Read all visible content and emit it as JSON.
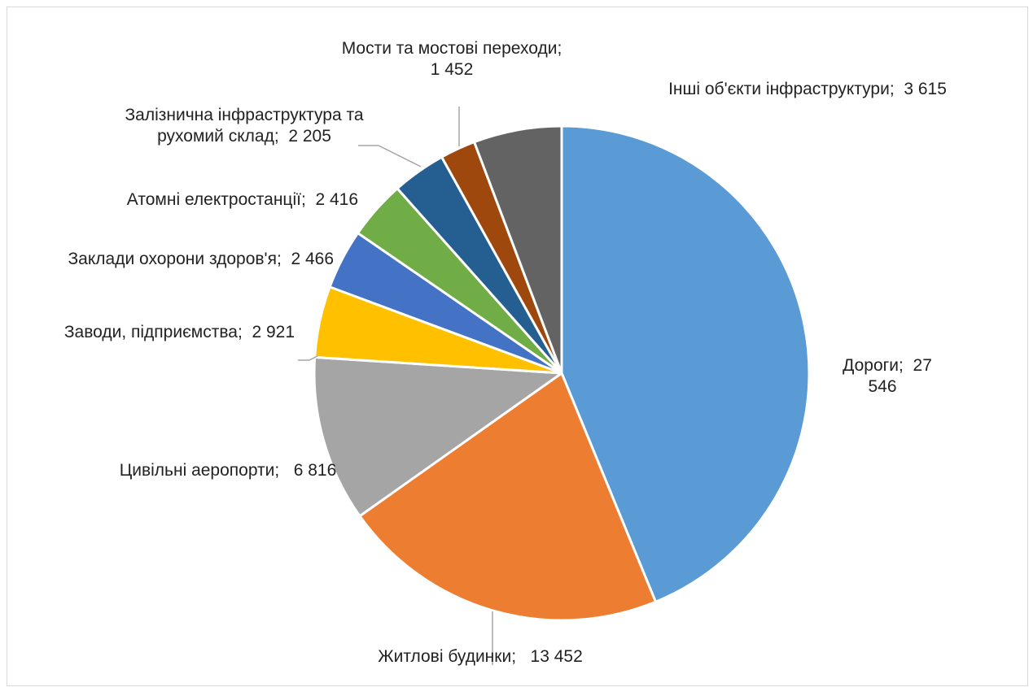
{
  "chart_data": {
    "type": "pie",
    "title": "",
    "legend": "none",
    "slices": [
      {
        "label": "Дороги",
        "value": 27546,
        "label_lines": [
          "Дороги;  27",
          "546"
        ],
        "color": "#5b9bd5"
      },
      {
        "label": "Житлові будинки",
        "value": 13452,
        "label_lines": [
          "Житлові будинки;   13 452"
        ],
        "color": "#ed7d31"
      },
      {
        "label": "Цивільні аеропорти",
        "value": 6816,
        "label_lines": [
          "Цивільні аеропорти;   6 816"
        ],
        "color": "#a5a5a5"
      },
      {
        "label": "Заводи, підприємства",
        "value": 2921,
        "label_lines": [
          "Заводи, підприємства;  2 921"
        ],
        "color": "#ffc000"
      },
      {
        "label": "Заклади охорони здоров'я",
        "value": 2466,
        "label_lines": [
          "Заклади охорони здоров'я;  2 466"
        ],
        "color": "#4472c4"
      },
      {
        "label": "Атомні електростанції",
        "value": 2416,
        "label_lines": [
          "Атомні електростанції;  2 416"
        ],
        "color": "#70ad47"
      },
      {
        "label": "Залізнична інфраструктура та рухомий склад",
        "value": 2205,
        "label_lines": [
          "Залізнична інфраструктура та",
          "рухомий склад;  2 205"
        ],
        "color": "#255e91"
      },
      {
        "label": "Мости та мостові переходи",
        "value": 1452,
        "label_lines": [
          "Мости та мостові переходи;",
          "1 452"
        ],
        "color": "#9e480e"
      },
      {
        "label": "Інші об'єкти інфраструктури",
        "value": 3615,
        "label_lines": [
          "Інші об'єкти інфраструктури;  3 615"
        ],
        "color": "#636363"
      }
    ]
  }
}
